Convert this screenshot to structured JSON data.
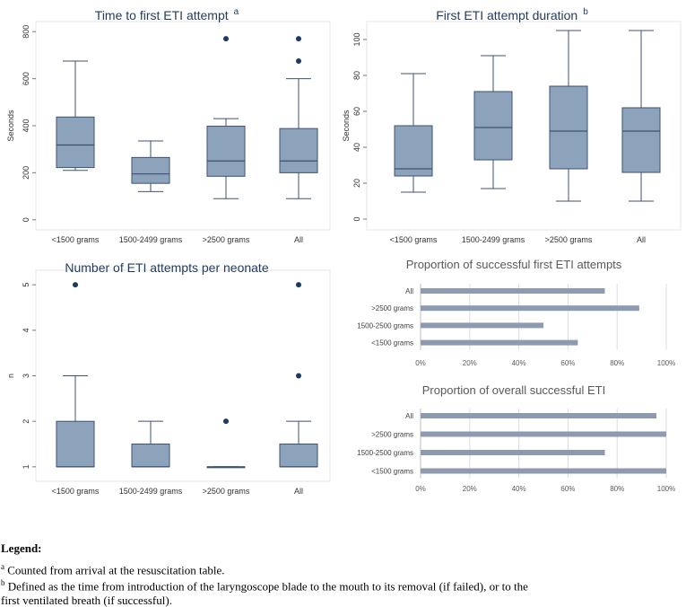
{
  "chart_data": [
    {
      "id": "a",
      "type": "boxplot",
      "title": "Time to first ETI attempt",
      "title_superscript": "a",
      "ylabel": "Seconds",
      "ylim": [
        -20,
        820
      ],
      "yticks": [
        0,
        200,
        400,
        600,
        800
      ],
      "categories": [
        "<1500 grams",
        "1500-2499 grams",
        ">2500 grams",
        "All"
      ],
      "boxes": [
        {
          "min": 210,
          "q1": 222,
          "median": 318,
          "q3": 437,
          "max": 675,
          "outliers": []
        },
        {
          "min": 120,
          "q1": 155,
          "median": 195,
          "q3": 265,
          "max": 335,
          "outliers": []
        },
        {
          "min": 90,
          "q1": 185,
          "median": 250,
          "q3": 398,
          "max": 430,
          "outliers": [
            770
          ]
        },
        {
          "min": 90,
          "q1": 200,
          "median": 250,
          "q3": 388,
          "max": 600,
          "outliers": [
            675,
            770
          ]
        }
      ]
    },
    {
      "id": "b",
      "type": "boxplot",
      "title": "First ETI attempt duration",
      "title_superscript": "b",
      "ylabel": "Seconds",
      "ylim": [
        -3,
        107
      ],
      "yticks": [
        0,
        20,
        40,
        60,
        80,
        100
      ],
      "categories": [
        "<1500 grams",
        "1500-2499 grams",
        ">2500 grams",
        "All"
      ],
      "boxes": [
        {
          "min": 15,
          "q1": 24,
          "median": 28,
          "q3": 52,
          "max": 81,
          "outliers": []
        },
        {
          "min": 17,
          "q1": 33,
          "median": 51,
          "q3": 71,
          "max": 91,
          "outliers": []
        },
        {
          "min": 10,
          "q1": 28,
          "median": 49,
          "q3": 74,
          "max": 105,
          "outliers": []
        },
        {
          "min": 10,
          "q1": 26,
          "median": 49,
          "q3": 62,
          "max": 105,
          "outliers": []
        }
      ]
    },
    {
      "id": "c",
      "type": "boxplot",
      "title": "Number of ETI attempts per neonate",
      "ylabel": "n",
      "ylim": [
        0.8,
        5.2
      ],
      "yticks": [
        1,
        2,
        3,
        4,
        5
      ],
      "categories": [
        "<1500 grams",
        "1500-2499 grams",
        ">2500 grams",
        "All"
      ],
      "boxes": [
        {
          "min": 1,
          "q1": 1,
          "median": 1,
          "q3": 2,
          "max": 3,
          "outliers": [
            5
          ]
        },
        {
          "min": 1,
          "q1": 1,
          "median": 1,
          "q3": 1.5,
          "max": 2,
          "outliers": []
        },
        {
          "min": 1,
          "q1": 1,
          "median": 1,
          "q3": 1,
          "max": 1,
          "outliers": [
            2
          ]
        },
        {
          "min": 1,
          "q1": 1,
          "median": 1,
          "q3": 1.5,
          "max": 2,
          "outliers": [
            3,
            5
          ]
        }
      ]
    },
    {
      "id": "d",
      "type": "bar",
      "orientation": "horizontal",
      "title": "Proportion of successful first ETI attempts",
      "categories": [
        "All",
        ">2500 grams",
        "1500-2500 grams",
        "<1500 grams"
      ],
      "values": [
        75,
        89,
        50,
        64
      ],
      "xlim": [
        0,
        100
      ],
      "xticks": [
        "0%",
        "20%",
        "40%",
        "60%",
        "80%",
        "100%"
      ]
    },
    {
      "id": "e",
      "type": "bar",
      "orientation": "horizontal",
      "title": "Proportion of overall successful ETI",
      "categories": [
        "All",
        ">2500 grams",
        "1500-2500 grams",
        "<1500 grams"
      ],
      "values": [
        96,
        100,
        75,
        100
      ],
      "xlim": [
        0,
        100
      ],
      "xticks": [
        "0%",
        "20%",
        "40%",
        "60%",
        "80%",
        "100%"
      ]
    }
  ],
  "colors": {
    "box_fill": "#8da3bb",
    "box_stroke": "#3d5270",
    "bar_fill": "#8d9bb1",
    "outlier": "#1f3b5f",
    "title_text": "#1f3b5f",
    "grid": "#dddddd"
  },
  "legend": {
    "heading": "Legend:",
    "notes": [
      {
        "mark": "a",
        "text": "Counted from arrival at the resuscitation table."
      },
      {
        "mark": "b",
        "text": "Defined as the time from introduction of the laryngoscope blade to the mouth to its removal (if failed), or to the"
      },
      {
        "mark": "",
        "text": "first ventilated breath (if successful)."
      }
    ]
  }
}
